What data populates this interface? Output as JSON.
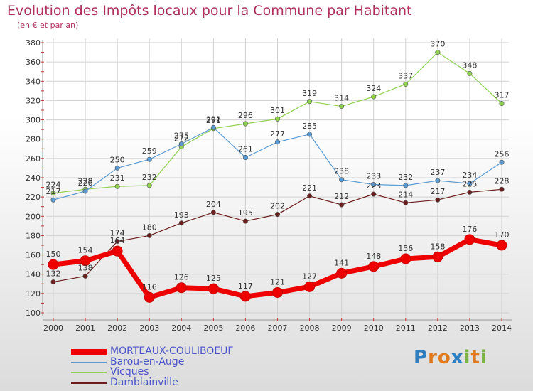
{
  "title": "Evolution des Impôts locaux pour la Commune par Habitant",
  "subtitle": "(en € et par an)",
  "logo": {
    "text": "Proxiti",
    "letter_colors": [
      "#2e7fc1",
      "#e07a1f",
      "#e07a1f",
      "#2e7fc1",
      "#7cb342",
      "#e07a1f",
      "#7cb342"
    ]
  },
  "chart_data": {
    "type": "line",
    "x": [
      "2000",
      "2001",
      "2002",
      "2003",
      "2004",
      "2005",
      "2006",
      "2007",
      "2008",
      "2009",
      "2010",
      "2011",
      "2012",
      "2013",
      "2014"
    ],
    "ylim": [
      100,
      380
    ],
    "yticks": [
      100,
      120,
      140,
      160,
      180,
      200,
      220,
      240,
      260,
      280,
      300,
      320,
      340,
      360,
      380
    ],
    "grid": true,
    "legend_position": "bottom-left",
    "series": [
      {
        "name": "MORTEAUX-COULIBOEUF",
        "color": "#ee0000",
        "labelColor": "#333333",
        "values": [
          150,
          154,
          164,
          116,
          126,
          125,
          117,
          121,
          127,
          141,
          148,
          156,
          158,
          176,
          170
        ]
      },
      {
        "name": "Barou-en-Auge",
        "color": "#5a9bd4",
        "labelColor": "#333333",
        "values": [
          217,
          226,
          250,
          259,
          275,
          292,
          261,
          277,
          285,
          238,
          233,
          232,
          237,
          234,
          256
        ]
      },
      {
        "name": "Vicques",
        "color": "#8fd14f",
        "labelColor": "#333333",
        "values": [
          224,
          228,
          231,
          232,
          272,
          291,
          296,
          301,
          319,
          314,
          324,
          337,
          370,
          348,
          317
        ]
      },
      {
        "name": "Damblainville",
        "color": "#6b1e1e",
        "labelColor": "#333333",
        "values": [
          132,
          138,
          174,
          180,
          193,
          204,
          195,
          202,
          221,
          212,
          223,
          214,
          217,
          225,
          228
        ]
      }
    ]
  }
}
